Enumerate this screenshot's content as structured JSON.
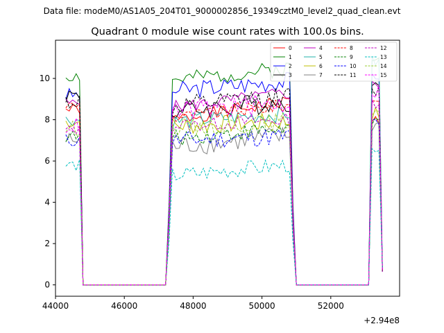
{
  "chart_data": {
    "type": "line",
    "suptitle": "Data file: modeM0/AS1A05_204T01_9000002856_19349cztM0_level2_quad_clean.evt",
    "title": "Quadrant 0 module wise count rates with 100.0s bins.",
    "xlabel": "",
    "ylabel": "",
    "x_offset_label": "+2.94e8",
    "xlim": [
      44000,
      54000
    ],
    "ylim": [
      -0.55,
      11.85
    ],
    "xticks": [
      44000,
      46000,
      48000,
      50000,
      52000
    ],
    "yticks": [
      0,
      2,
      4,
      6,
      8,
      10
    ],
    "legend_position": "top-right",
    "grid": false,
    "series": [
      {
        "name": "0",
        "color": "#ff0000",
        "dash": "solid",
        "base": [
          8.5,
          8.0,
          8.9,
          8.0
        ]
      },
      {
        "name": "1",
        "color": "#008000",
        "dash": "solid",
        "base": [
          10.1,
          9.9,
          10.5,
          10.9
        ]
      },
      {
        "name": "2",
        "color": "#0000ff",
        "dash": "solid",
        "base": [
          9.2,
          9.4,
          9.9,
          10.2
        ]
      },
      {
        "name": "3",
        "color": "#000000",
        "dash": "solid",
        "base": [
          9.2,
          8.4,
          8.9,
          9.5
        ]
      },
      {
        "name": "4",
        "color": "#bf00bf",
        "dash": "solid",
        "base": [
          8.8,
          8.6,
          9.3,
          9.7
        ]
      },
      {
        "name": "5",
        "color": "#20b2aa",
        "dash": "solid",
        "base": [
          8.0,
          7.9,
          8.3,
          10.8
        ]
      },
      {
        "name": "6",
        "color": "#bfbf00",
        "dash": "solid",
        "base": [
          7.9,
          7.7,
          7.9,
          8.3
        ]
      },
      {
        "name": "7",
        "color": "#808080",
        "dash": "solid",
        "base": [
          7.0,
          6.7,
          7.2,
          7.7
        ]
      },
      {
        "name": "8",
        "color": "#ff0000",
        "dash": "dashed",
        "base": [
          8.7,
          8.1,
          8.7,
          9.0
        ]
      },
      {
        "name": "9",
        "color": "#008000",
        "dash": "dashed",
        "base": [
          7.2,
          7.1,
          7.6,
          7.8
        ]
      },
      {
        "name": "10",
        "color": "#0000ff",
        "dash": "dashed",
        "base": [
          7.0,
          7.0,
          7.2,
          7.9
        ]
      },
      {
        "name": "11",
        "color": "#000000",
        "dash": "dashed",
        "base": [
          8.9,
          8.6,
          9.1,
          9.3
        ]
      },
      {
        "name": "12",
        "color": "#bf00bf",
        "dash": "dashed",
        "base": [
          7.5,
          7.7,
          8.0,
          8.8
        ]
      },
      {
        "name": "13",
        "color": "#00bfbf",
        "dash": "dashed",
        "base": [
          5.8,
          5.3,
          5.8,
          6.3
        ]
      },
      {
        "name": "14",
        "color": "#9acd32",
        "dash": "dashed",
        "base": [
          7.6,
          7.6,
          7.9,
          8.5
        ]
      },
      {
        "name": "15",
        "color": "#ff00ff",
        "dash": "dashed",
        "base": [
          7.7,
          8.4,
          8.8,
          9.4
        ]
      }
    ],
    "segments": [
      {
        "x_start": 44300,
        "x_end": 44700,
        "drop_to": 44800
      },
      {
        "rise_from": 47200,
        "x_start": 47400,
        "x_end": 50800,
        "drop_to": 51000
      },
      {
        "rise_from": 53100,
        "x_start": 53200,
        "x_end": 53400,
        "drop_to": 53500
      }
    ],
    "zero_level": 0.0
  }
}
